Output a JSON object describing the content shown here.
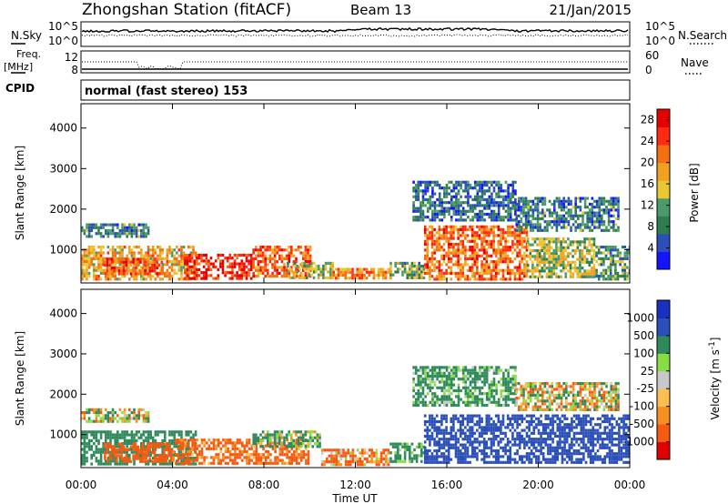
{
  "header": {
    "station": "Zhongshan Station (fitACF)",
    "beam": "Beam 13",
    "date": "21/Jan/2015"
  },
  "panels": {
    "nsky_label": "N.Sky",
    "nsearch_label": "N.Search",
    "nsky_ticks": [
      "10^5",
      "10^0"
    ],
    "nsearch_ticks": [
      "10^5",
      "10^0"
    ],
    "freq_label": "Freq.",
    "freq_unit": "[MHz]",
    "freq_ticks": [
      "12",
      "8"
    ],
    "nave_label": "Nave",
    "nave_ticks": [
      "60",
      "0"
    ],
    "cpid_label": "CPID",
    "mode": "normal (fast stereo) 153"
  },
  "colors": {
    "power": [
      "#1414ff",
      "#2a4fb8",
      "#2e7d4f",
      "#4a9a6a",
      "#e8c830",
      "#f2a020",
      "#f57010",
      "#ff2a10",
      "#e80000"
    ],
    "velocity": [
      "#e00000",
      "#f55a10",
      "#f79020",
      "#ffbf50",
      "#c8c8c8",
      "#88dd44",
      "#2e8a5a",
      "#2a4fb8",
      "#1a30c0"
    ]
  },
  "chart_data": [
    {
      "type": "heatmap",
      "name": "power",
      "xlabel": "Time UT",
      "ylabel": "Slant Range [km]",
      "x_ticks": [
        "00:00",
        "04:00",
        "08:00",
        "12:00",
        "16:00",
        "20:00",
        "00:00"
      ],
      "xlim_hours": [
        0,
        24
      ],
      "ylim": [
        180,
        4600
      ],
      "y_ticks": [
        1000,
        2000,
        3000,
        4000
      ],
      "colorbar_label": "Power [dB]",
      "colorbar_ticks": [
        4,
        8,
        12,
        16,
        20,
        24,
        28
      ],
      "clim": [
        0,
        30
      ],
      "regions": [
        {
          "t": [
            0.0,
            5.0
          ],
          "r": [
            300,
            1100
          ],
          "level": 18
        },
        {
          "t": [
            1.0,
            3.5
          ],
          "r": [
            400,
            800
          ],
          "level": 23
        },
        {
          "t": [
            4.5,
            7.5
          ],
          "r": [
            300,
            900
          ],
          "level": 26
        },
        {
          "t": [
            7.5,
            10.0
          ],
          "r": [
            350,
            1100
          ],
          "level": 22
        },
        {
          "t": [
            9.0,
            11.0
          ],
          "r": [
            300,
            700
          ],
          "level": 14
        },
        {
          "t": [
            11.0,
            13.5
          ],
          "r": [
            280,
            550
          ],
          "level": 20
        },
        {
          "t": [
            13.5,
            15.0
          ],
          "r": [
            300,
            700
          ],
          "level": 12
        },
        {
          "t": [
            15.0,
            19.5
          ],
          "r": [
            300,
            1600
          ],
          "level": 22
        },
        {
          "t": [
            19.5,
            22.5
          ],
          "r": [
            300,
            1300
          ],
          "level": 14
        },
        {
          "t": [
            22.5,
            24.0
          ],
          "r": [
            300,
            1100
          ],
          "level": 10
        },
        {
          "t": [
            0.0,
            3.0
          ],
          "r": [
            1350,
            1650
          ],
          "level": 8
        },
        {
          "t": [
            14.5,
            19.0
          ],
          "r": [
            1700,
            2700
          ],
          "level": 7
        },
        {
          "t": [
            19.0,
            23.5
          ],
          "r": [
            1500,
            2300
          ],
          "level": 8
        }
      ]
    },
    {
      "type": "heatmap",
      "name": "velocity",
      "xlabel": "Time UT",
      "ylabel": "Slant Range [km]",
      "x_ticks": [
        "00:00",
        "04:00",
        "08:00",
        "12:00",
        "16:00",
        "20:00",
        "00:00"
      ],
      "xlim_hours": [
        0,
        24
      ],
      "ylim": [
        180,
        4600
      ],
      "y_ticks": [
        1000,
        2000,
        3000,
        4000
      ],
      "colorbar_label": "Velocity [m s^-1]",
      "colorbar_ticks": [
        "1000",
        "500",
        "100",
        "25",
        "-25",
        "-100",
        "-500",
        "-1000"
      ],
      "regions": [
        {
          "t": [
            0.0,
            5.0
          ],
          "r": [
            300,
            1100
          ],
          "level": 300
        },
        {
          "t": [
            1.0,
            4.0
          ],
          "r": [
            350,
            800
          ],
          "level": -300
        },
        {
          "t": [
            4.0,
            10.0
          ],
          "r": [
            300,
            900
          ],
          "level": -200
        },
        {
          "t": [
            7.5,
            10.5
          ],
          "r": [
            700,
            1100
          ],
          "level": 150
        },
        {
          "t": [
            10.5,
            13.5
          ],
          "r": [
            280,
            650
          ],
          "level": -150
        },
        {
          "t": [
            13.5,
            15.0
          ],
          "r": [
            300,
            800
          ],
          "level": 200
        },
        {
          "t": [
            15.0,
            24.0
          ],
          "r": [
            300,
            1500
          ],
          "level": 800
        },
        {
          "t": [
            0.0,
            3.0
          ],
          "r": [
            1350,
            1650
          ],
          "level": 0
        },
        {
          "t": [
            14.5,
            19.0
          ],
          "r": [
            1700,
            2700
          ],
          "level": 200
        },
        {
          "t": [
            19.0,
            23.5
          ],
          "r": [
            1600,
            2300
          ],
          "level": 0
        }
      ]
    }
  ]
}
